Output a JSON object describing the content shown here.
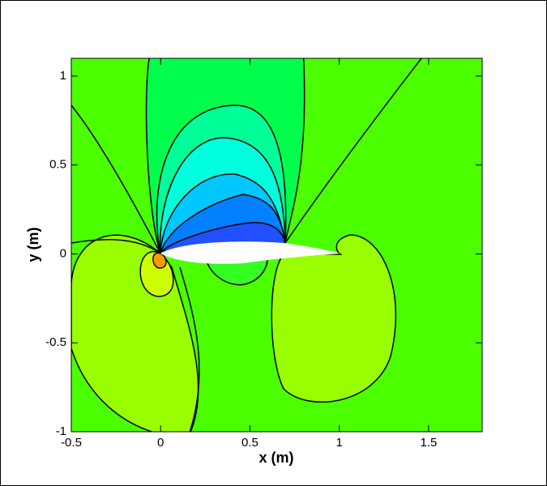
{
  "chart_data": {
    "type": "contour",
    "xlabel": "x (m)",
    "ylabel": "y (m)",
    "xlim": [
      -0.5,
      1.8
    ],
    "ylim": [
      -1,
      1.1
    ],
    "xticks": [
      -0.5,
      0,
      0.5,
      1,
      1.5
    ],
    "yticks": [
      -1,
      -0.5,
      0,
      0.5,
      1
    ]
  }
}
